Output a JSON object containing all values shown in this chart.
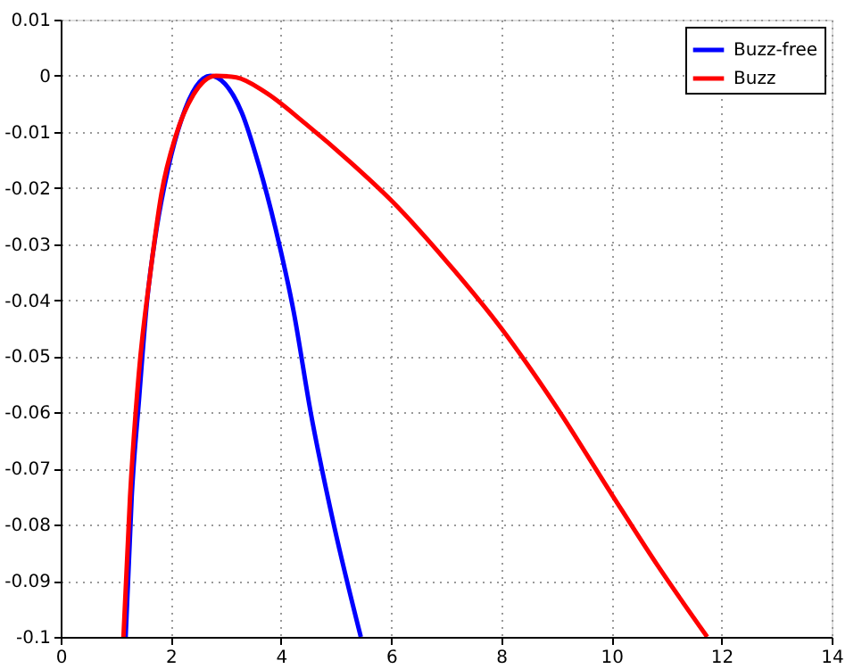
{
  "chart_data": {
    "type": "line",
    "series": [
      {
        "name": "Buzz-free",
        "color": "#0000ff",
        "x": [
          1.18,
          1.29,
          1.42,
          1.57,
          1.73,
          1.94,
          2.2,
          2.46,
          2.72,
          2.98,
          3.29,
          3.6,
          3.92,
          4.23,
          4.54,
          4.96,
          5.45
        ],
        "values": [
          -0.1,
          -0.075,
          -0.058,
          -0.04,
          -0.028,
          -0.017,
          -0.0076,
          -0.0019,
          0,
          -0.0014,
          -0.0066,
          -0.016,
          -0.028,
          -0.042,
          -0.06,
          -0.08,
          -0.1
        ]
      },
      {
        "name": "Buzz",
        "color": "#ff0000",
        "x": [
          1.14,
          1.26,
          1.42,
          1.63,
          1.83,
          2.09,
          2.41,
          2.82,
          3.19,
          3.71,
          4.44,
          5.27,
          6.0,
          7.0,
          8.0,
          9.0,
          10.0,
          10.82,
          11.74
        ],
        "values": [
          -0.1,
          -0.075,
          -0.053,
          -0.035,
          -0.021,
          -0.0107,
          -0.0034,
          0,
          -0.0003,
          -0.0029,
          -0.0085,
          -0.0155,
          -0.0222,
          -0.033,
          -0.045,
          -0.059,
          -0.0745,
          -0.087,
          -0.1
        ]
      }
    ],
    "xlim": [
      0,
      14
    ],
    "xticks": [
      0,
      2,
      4,
      6,
      8,
      10,
      12,
      14
    ],
    "ylim": [
      -0.1,
      0.01
    ],
    "yticks": [
      -0.1,
      -0.09,
      -0.08,
      -0.07,
      -0.06,
      -0.05,
      -0.04,
      -0.03,
      -0.02,
      -0.01,
      0,
      0.01
    ],
    "grid": true,
    "legend": "top right",
    "line_style": "solid",
    "marker": "none"
  }
}
